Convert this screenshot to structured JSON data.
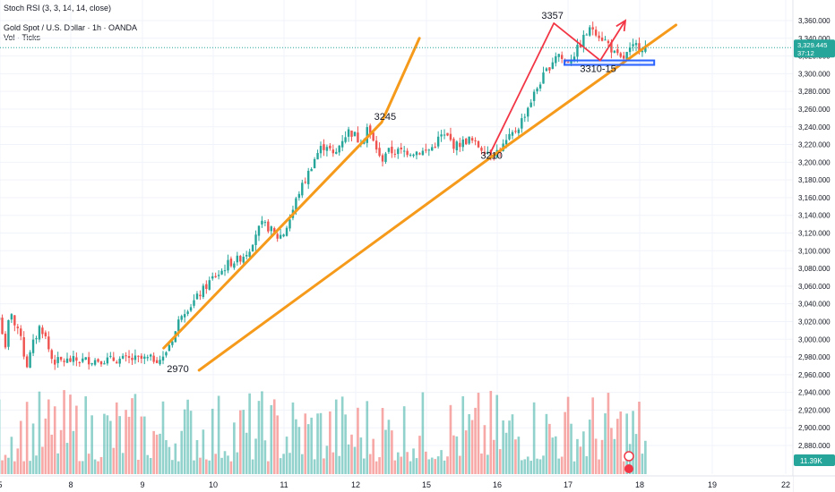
{
  "header": {
    "indicator": "Stoch RSI (3, 3, 14, 14, close)",
    "symbol": "Gold Spot / U.S. Dollar · 1h · OANDA",
    "volume_label": "Vol · Ticks"
  },
  "price_tag": {
    "price": "3,329.445",
    "countdown": "37:12"
  },
  "volume_tag": "11.39K",
  "colors": {
    "up": "#26a69a",
    "down": "#ef5350",
    "channel": "#f59a1a",
    "arrow": "#f23645",
    "zone": "#2962ff",
    "price_line": "#26a69a"
  },
  "chart_data": {
    "type": "candlestick",
    "title": "Gold Spot / U.S. Dollar · 1h · OANDA",
    "y_axis": {
      "ticks": [
        2880,
        2900,
        2920,
        2940,
        2960,
        2980,
        3000,
        3020,
        3040,
        3060,
        3080,
        3100,
        3120,
        3140,
        3160,
        3180,
        3200,
        3220,
        3240,
        3260,
        3280,
        3300,
        3320,
        3340,
        3360
      ],
      "tick_labels": [
        "2,880.000",
        "2,900.000",
        "2,920.000",
        "2,940.000",
        "2,960.000",
        "2,980.000",
        "3,000.000",
        "3,020.000",
        "3,040.000",
        "3,060.000",
        "3,080.000",
        "3,100.000",
        "3,120.000",
        "3,140.000",
        "3,160.000",
        "3,180.000",
        "3,200.000",
        "3,220.000",
        "3,240.000",
        "3,260.000",
        "3,280.000",
        "3,300.000",
        "3,320.000",
        "3,340.000",
        "3,360.000"
      ],
      "ylim": [
        2868,
        3372
      ]
    },
    "x_axis": {
      "ticks": [
        5,
        8,
        9,
        10,
        11,
        12,
        15,
        16,
        17,
        18,
        19,
        22
      ],
      "tick_labels": [
        "5",
        "8",
        "9",
        "10",
        "11",
        "12",
        "15",
        "16",
        "17",
        "18",
        "19",
        "22"
      ]
    },
    "price_path": [
      [
        4.9,
        3030
      ],
      [
        5.0,
        3022
      ],
      [
        5.1,
        3008
      ],
      [
        5.2,
        2980
      ],
      [
        5.35,
        3018
      ],
      [
        5.5,
        3032
      ],
      [
        5.6,
        3020
      ],
      [
        5.7,
        3000
      ],
      [
        5.8,
        3015
      ],
      [
        5.9,
        3005
      ],
      [
        6.0,
        2985
      ],
      [
        6.1,
        2968
      ],
      [
        6.2,
        2975
      ],
      [
        6.3,
        2985
      ],
      [
        6.4,
        2995
      ],
      [
        6.5,
        3000
      ],
      [
        6.6,
        3010
      ],
      [
        6.7,
        3015
      ],
      [
        6.8,
        3010
      ],
      [
        6.9,
        3005
      ],
      [
        7.0,
        2995
      ],
      [
        7.1,
        2985
      ],
      [
        7.2,
        2978
      ],
      [
        7.3,
        2975
      ],
      [
        9.3,
        2978
      ],
      [
        9.35,
        2990
      ],
      [
        9.45,
        3005
      ],
      [
        9.55,
        3030
      ],
      [
        9.7,
        3040
      ],
      [
        9.9,
        3060
      ],
      [
        10.0,
        3070
      ],
      [
        10.1,
        3075
      ],
      [
        10.2,
        3085
      ],
      [
        10.35,
        3090
      ],
      [
        10.5,
        3100
      ],
      [
        10.6,
        3120
      ],
      [
        10.7,
        3130
      ],
      [
        10.8,
        3125
      ],
      [
        10.9,
        3115
      ],
      [
        11.0,
        3120
      ],
      [
        11.1,
        3140
      ],
      [
        11.2,
        3165
      ],
      [
        11.3,
        3180
      ],
      [
        11.4,
        3200
      ],
      [
        11.5,
        3215
      ],
      [
        11.6,
        3220
      ],
      [
        11.7,
        3205
      ],
      [
        11.8,
        3225
      ],
      [
        11.9,
        3235
      ],
      [
        12.0,
        3230
      ],
      [
        12.1,
        3225
      ],
      [
        12.2,
        3230
      ],
      [
        12.3,
        3215
      ],
      [
        12.4,
        3238
      ],
      [
        12.5,
        3240
      ],
      [
        12.6,
        3232
      ],
      [
        12.7,
        3225
      ],
      [
        12.8,
        3220
      ],
      [
        12.9,
        3215
      ],
      [
        13.0,
        3205
      ],
      [
        13.1,
        3200
      ],
      [
        13.2,
        3210
      ],
      [
        13.3,
        3212
      ],
      [
        15.0,
        3212
      ],
      [
        15.1,
        3218
      ],
      [
        15.2,
        3230
      ],
      [
        15.3,
        3228
      ],
      [
        15.4,
        3218
      ],
      [
        15.5,
        3222
      ],
      [
        15.6,
        3226
      ],
      [
        15.7,
        3220
      ],
      [
        15.8,
        3215
      ],
      [
        15.95,
        3210
      ],
      [
        16.05,
        3215
      ],
      [
        16.15,
        3225
      ],
      [
        16.3,
        3240
      ],
      [
        16.45,
        3265
      ],
      [
        16.6,
        3290
      ],
      [
        16.75,
        3310
      ],
      [
        16.85,
        3325
      ],
      [
        16.95,
        3312
      ],
      [
        17.05,
        3318
      ],
      [
        17.15,
        3330
      ],
      [
        17.25,
        3345
      ],
      [
        17.35,
        3352
      ],
      [
        17.45,
        3342
      ],
      [
        17.55,
        3335
      ],
      [
        17.65,
        3322
      ],
      [
        17.75,
        3315
      ],
      [
        17.85,
        3325
      ],
      [
        17.95,
        3332
      ],
      [
        18.1,
        3329
      ]
    ],
    "volume": {
      "count": 210
    },
    "drawings": {
      "channel_upper": [
        [
          9.3,
          2990
        ],
        [
          13.1,
          3245
        ],
        [
          14.7,
          3340
        ]
      ],
      "channel_lower": [
        [
          9.8,
          2965
        ],
        [
          15.9,
          3205
        ],
        [
          18.5,
          3355
        ]
      ],
      "zigzag": [
        [
          15.9,
          3210
        ],
        [
          16.8,
          3357
        ],
        [
          17.45,
          3315
        ],
        [
          17.8,
          3360
        ]
      ],
      "support_zone": {
        "from": 3310,
        "to": 3315,
        "x_start": 16.95,
        "x_end": 18.2
      }
    },
    "annotations": [
      {
        "text": "3357",
        "x": 16.78,
        "y": 3362
      },
      {
        "text": "3245",
        "x": 13.25,
        "y": 3248
      },
      {
        "text": "3210",
        "x": 15.92,
        "y": 3204
      },
      {
        "text": "2970",
        "x": 9.5,
        "y": 2963
      },
      {
        "text": "3310-15",
        "x": 17.42,
        "y": 3302
      }
    ]
  }
}
